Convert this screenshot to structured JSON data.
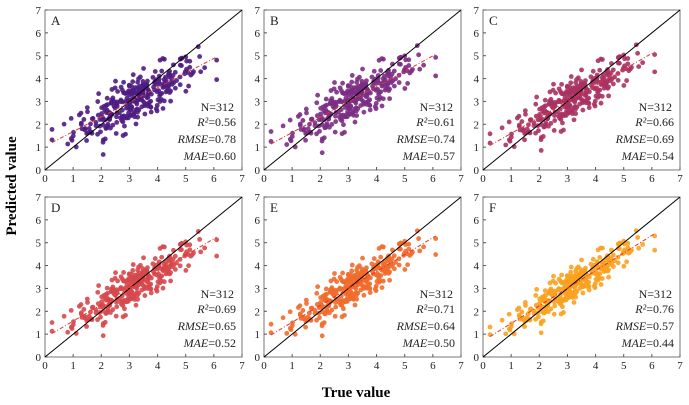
{
  "chart_data": [
    {
      "type": "scatter",
      "panel_label": "A",
      "color": "#4e1c82",
      "n_text": "N=312",
      "r2_label": "R²",
      "r2_value": "=0.56",
      "rmse_label": "RMSE",
      "rmse_value": "=0.78",
      "mae_label": "MAE",
      "mae_value": "=0.60",
      "n": 312,
      "r2": 0.56,
      "rmse": 0.78,
      "mae": 0.6,
      "fit": {
        "slope": 0.64,
        "intercept": 1.04,
        "x_range": [
          0.25,
          6.1
        ]
      }
    },
    {
      "type": "scatter",
      "panel_label": "B",
      "color": "#7b2d84",
      "n_text": "N=312",
      "r2_label": "R²",
      "r2_value": "=0.61",
      "rmse_label": "RMSE",
      "rmse_value": "=0.74",
      "mae_label": "MAE",
      "mae_value": "=0.57",
      "n": 312,
      "r2": 0.61,
      "rmse": 0.74,
      "mae": 0.57,
      "fit": {
        "slope": 0.67,
        "intercept": 0.97,
        "x_range": [
          0.25,
          6.1
        ]
      }
    },
    {
      "type": "scatter",
      "panel_label": "C",
      "color": "#a83262",
      "n_text": "N=312",
      "r2_label": "R²",
      "r2_value": "=0.66",
      "rmse_label": "RMSE",
      "rmse_value": "=0.69",
      "mae_label": "MAE",
      "mae_value": "=0.54",
      "n": 312,
      "r2": 0.66,
      "rmse": 0.69,
      "mae": 0.54,
      "fit": {
        "slope": 0.7,
        "intercept": 0.9,
        "x_range": [
          0.25,
          6.1
        ]
      }
    },
    {
      "type": "scatter",
      "panel_label": "D",
      "color": "#d6484c",
      "n_text": "N=312",
      "r2_label": "R²",
      "r2_value": "=0.69",
      "rmse_label": "RMSE",
      "rmse_value": "=0.65",
      "mae_label": "MAE",
      "mae_value": "=0.52",
      "n": 312,
      "r2": 0.69,
      "rmse": 0.65,
      "mae": 0.52,
      "fit": {
        "slope": 0.72,
        "intercept": 0.85,
        "x_range": [
          0.25,
          6.1
        ]
      }
    },
    {
      "type": "scatter",
      "panel_label": "E",
      "color": "#f06b2c",
      "n_text": "N=312",
      "r2_label": "R²",
      "r2_value": "=0.71",
      "rmse_label": "RMSE",
      "rmse_value": "=0.64",
      "mae_label": "MAE",
      "mae_value": "=0.50",
      "n": 312,
      "r2": 0.71,
      "rmse": 0.64,
      "mae": 0.5,
      "fit": {
        "slope": 0.74,
        "intercept": 0.78,
        "x_range": [
          0.25,
          6.1
        ]
      }
    },
    {
      "type": "scatter",
      "panel_label": "F",
      "color": "#f9a11f",
      "n_text": "N=312",
      "r2_label": "R²",
      "r2_value": "=0.76",
      "rmse_label": "RMSE",
      "rmse_value": "=0.57",
      "mae_label": "MAE",
      "mae_value": "=0.44",
      "n": 312,
      "r2": 0.76,
      "rmse": 0.57,
      "mae": 0.44,
      "fit": {
        "slope": 0.77,
        "intercept": 0.7,
        "x_range": [
          0.25,
          6.1
        ]
      }
    }
  ],
  "axes": {
    "xlim": [
      0,
      7
    ],
    "ylim": [
      0,
      7
    ],
    "ticks": [
      "0",
      "1",
      "2",
      "3",
      "4",
      "5",
      "6",
      "7"
    ]
  },
  "xlabel": "True value",
  "ylabel": "Predicted value",
  "fit_line_color": "#e8342c",
  "identity_line_color": "#000000"
}
